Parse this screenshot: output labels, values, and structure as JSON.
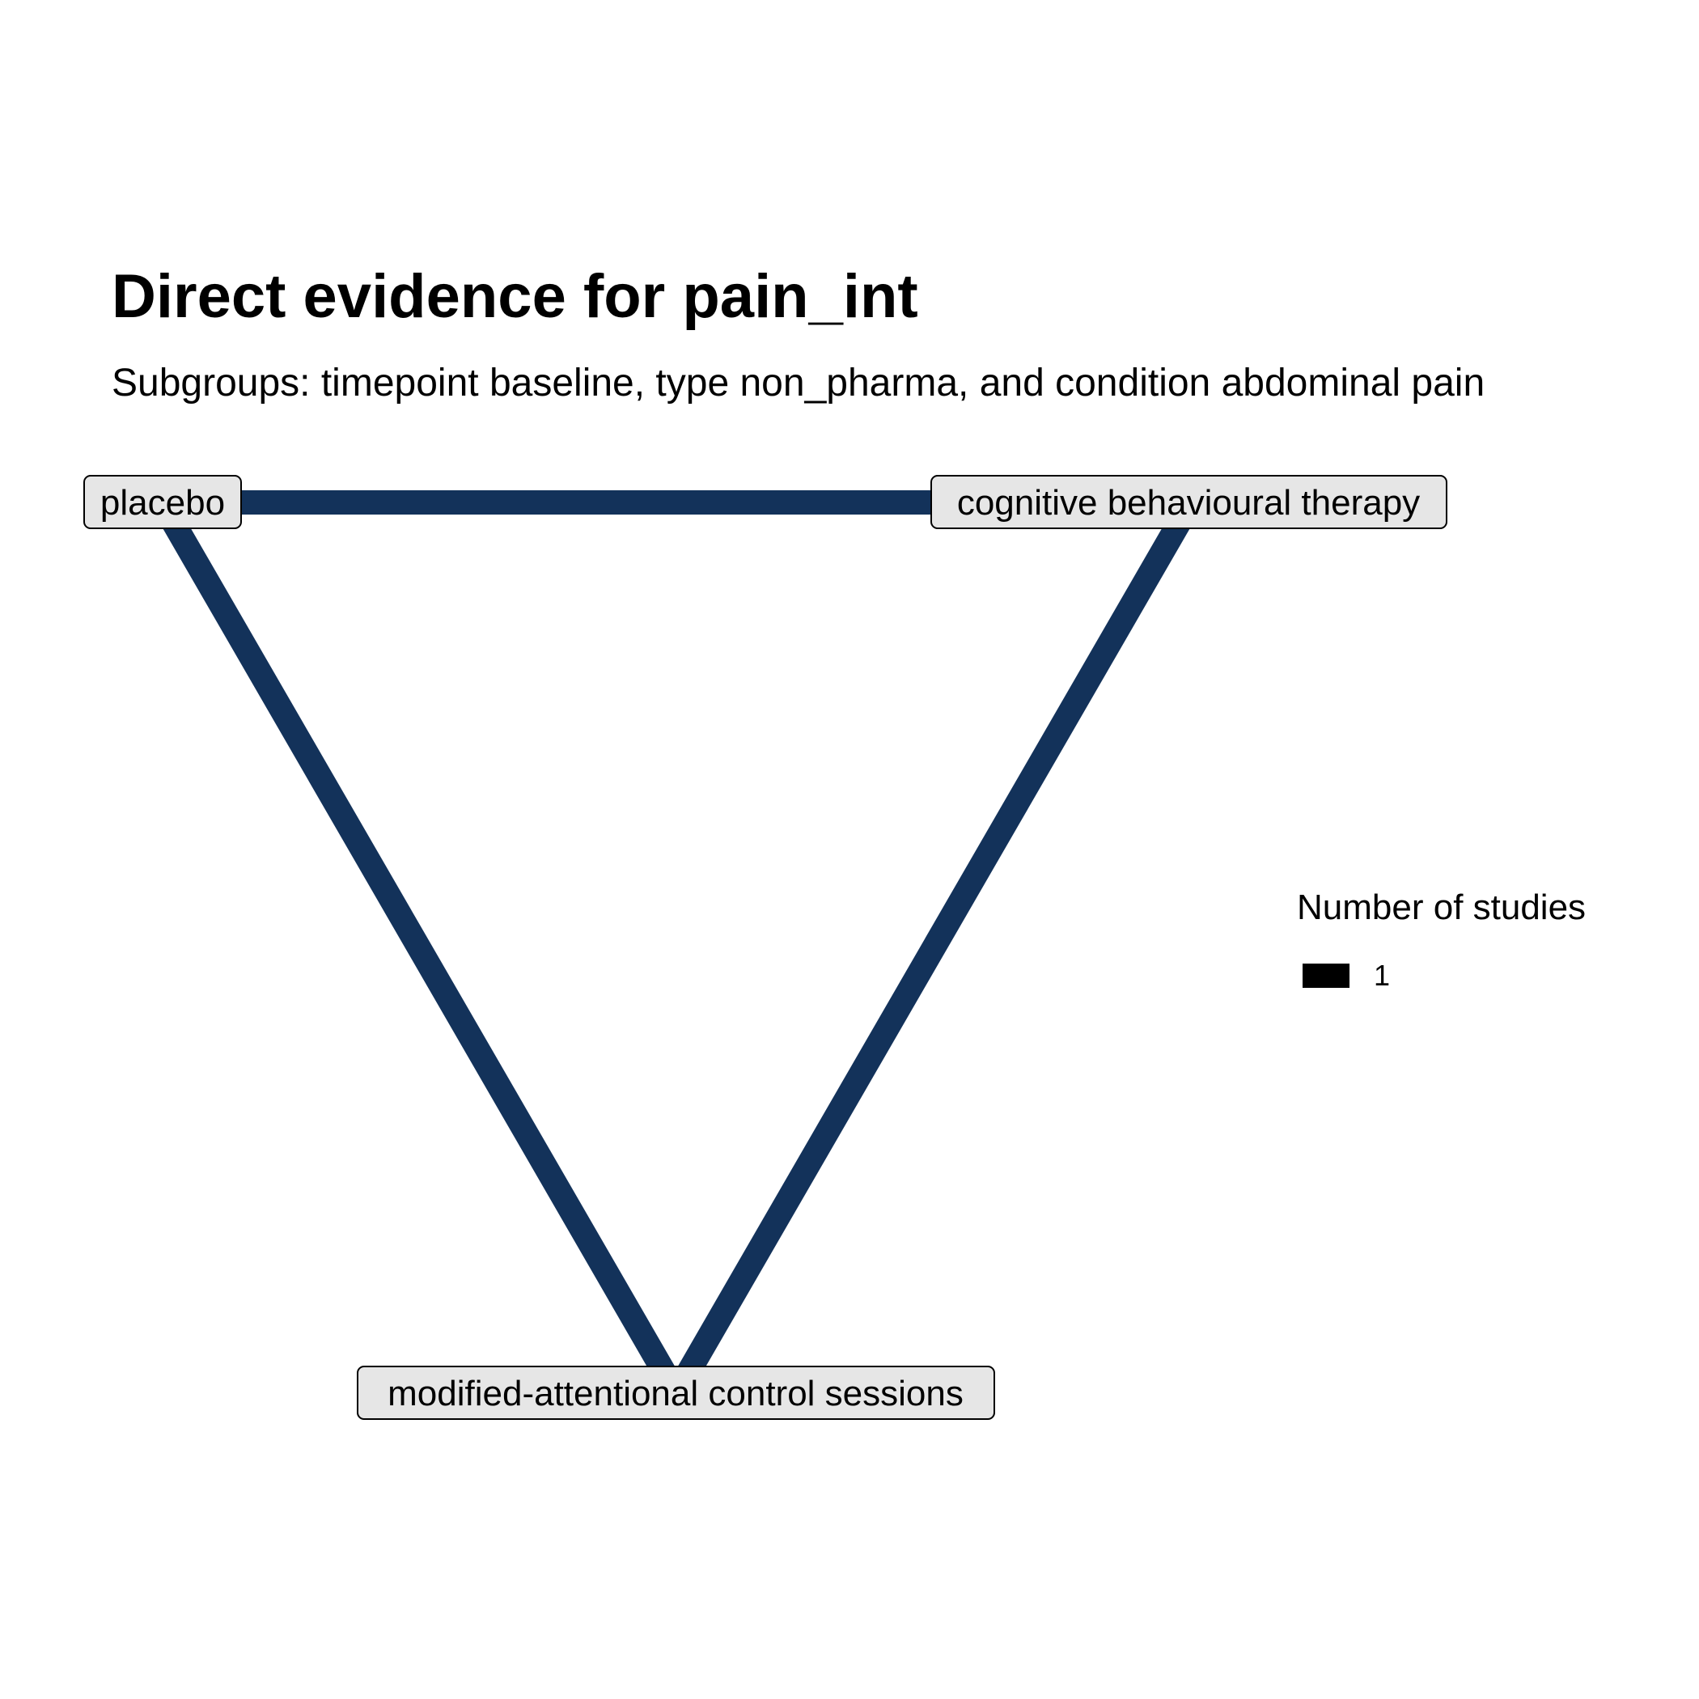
{
  "title": "Direct evidence for pain_int",
  "subtitle": "Subgroups: timepoint baseline, type non_pharma, and condition abdominal pain",
  "colors": {
    "edge": "#13325a",
    "node_fill": "#e6e6e6",
    "node_border": "#000000",
    "legend_key": "#000000"
  },
  "nodes": [
    {
      "id": "placebo",
      "label": "placebo"
    },
    {
      "id": "cbt",
      "label": "cognitive behavioural therapy"
    },
    {
      "id": "macs",
      "label": "modified-attentional control sessions"
    }
  ],
  "edges": [
    {
      "from": "placebo",
      "to": "cbt",
      "studies": 1
    },
    {
      "from": "placebo",
      "to": "macs",
      "studies": 1
    },
    {
      "from": "cbt",
      "to": "macs",
      "studies": 1
    }
  ],
  "legend": {
    "title": "Number of studies",
    "items": [
      {
        "label": "1"
      }
    ]
  }
}
